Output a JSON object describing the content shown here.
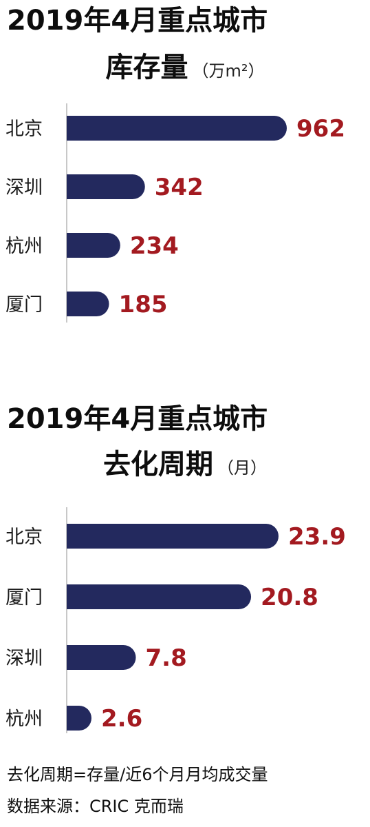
{
  "chart_data": [
    {
      "type": "bar",
      "orientation": "horizontal",
      "title_line1": "2019年4月重点城市",
      "title_line2": "库存量",
      "unit": "（万m²）",
      "categories": [
        "北京",
        "深圳",
        "杭州",
        "厦门"
      ],
      "values": [
        962,
        342,
        234,
        185
      ],
      "value_labels": [
        "962",
        "342",
        "234",
        "185"
      ],
      "bar_color": "#23295e",
      "label_color": "#a31a20"
    },
    {
      "type": "bar",
      "orientation": "horizontal",
      "title_line1": "2019年4月重点城市",
      "title_line2": "去化周期",
      "unit": "（月）",
      "categories": [
        "北京",
        "厦门",
        "深圳",
        "杭州"
      ],
      "values": [
        23.9,
        20.8,
        7.8,
        2.6
      ],
      "value_labels": [
        "23.9",
        "20.8",
        "7.8",
        "2.6"
      ],
      "bar_color": "#23295e",
      "label_color": "#a31a20"
    }
  ],
  "footer": {
    "note": "去化周期=存量/近6个月月均成交量",
    "source": "数据来源：CRIC 克而瑞"
  }
}
